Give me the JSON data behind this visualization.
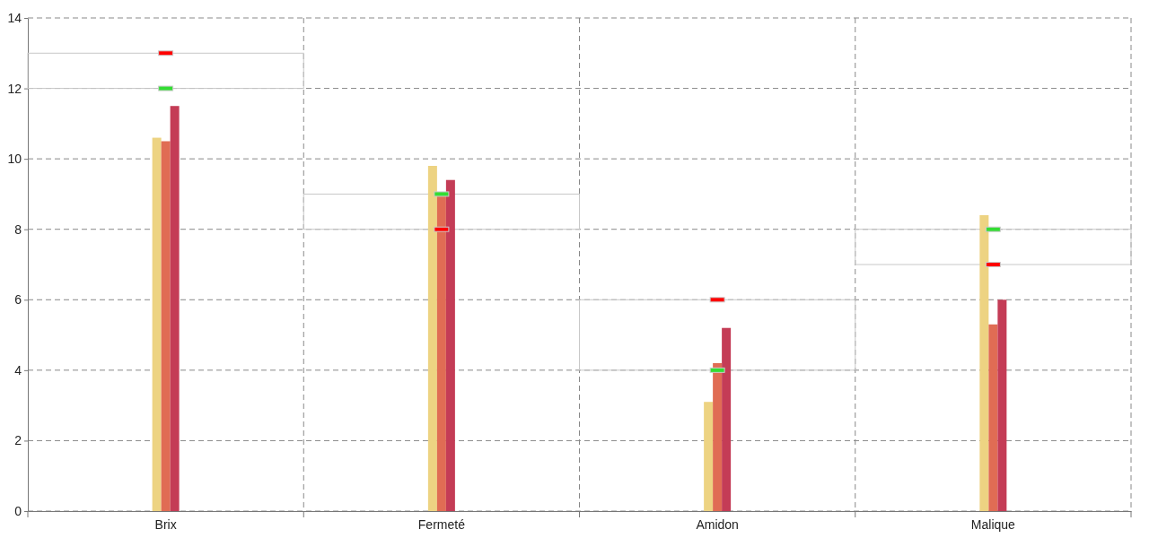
{
  "chart_data": {
    "type": "bar",
    "categories": [
      "Brix",
      "Fermeté",
      "Amidon",
      "Malique"
    ],
    "ylim": [
      0,
      14
    ],
    "yticks": [
      0,
      2,
      4,
      6,
      8,
      10,
      12,
      14
    ],
    "grid": true,
    "series": [
      {
        "color": "#c8c8c8",
        "base": [
          12,
          8,
          4,
          7
        ],
        "values": [
          1,
          1,
          2,
          1
        ]
      },
      {
        "color": "#edd382",
        "values": [
          10.6,
          9.8,
          3.1,
          8.4
        ]
      },
      {
        "color": "#e06c54",
        "values": [
          10.5,
          9.0,
          4.2,
          5.3
        ]
      },
      {
        "color": "#c43c56",
        "values": [
          11.5,
          9.4,
          5.2,
          6.0
        ]
      },
      {
        "type": "scatter",
        "color": "#33dd33",
        "marker": "square",
        "x": [
          "Brix",
          "Fermeté",
          "Amidon",
          "Malique"
        ],
        "values": [
          12,
          9,
          4,
          8
        ]
      },
      {
        "type": "scatter",
        "color": "#ff0000",
        "marker": "square",
        "x": [
          "Brix",
          "Fermeté",
          "Amidon",
          "Malique"
        ],
        "values": [
          13,
          8,
          6,
          7
        ]
      }
    ]
  }
}
